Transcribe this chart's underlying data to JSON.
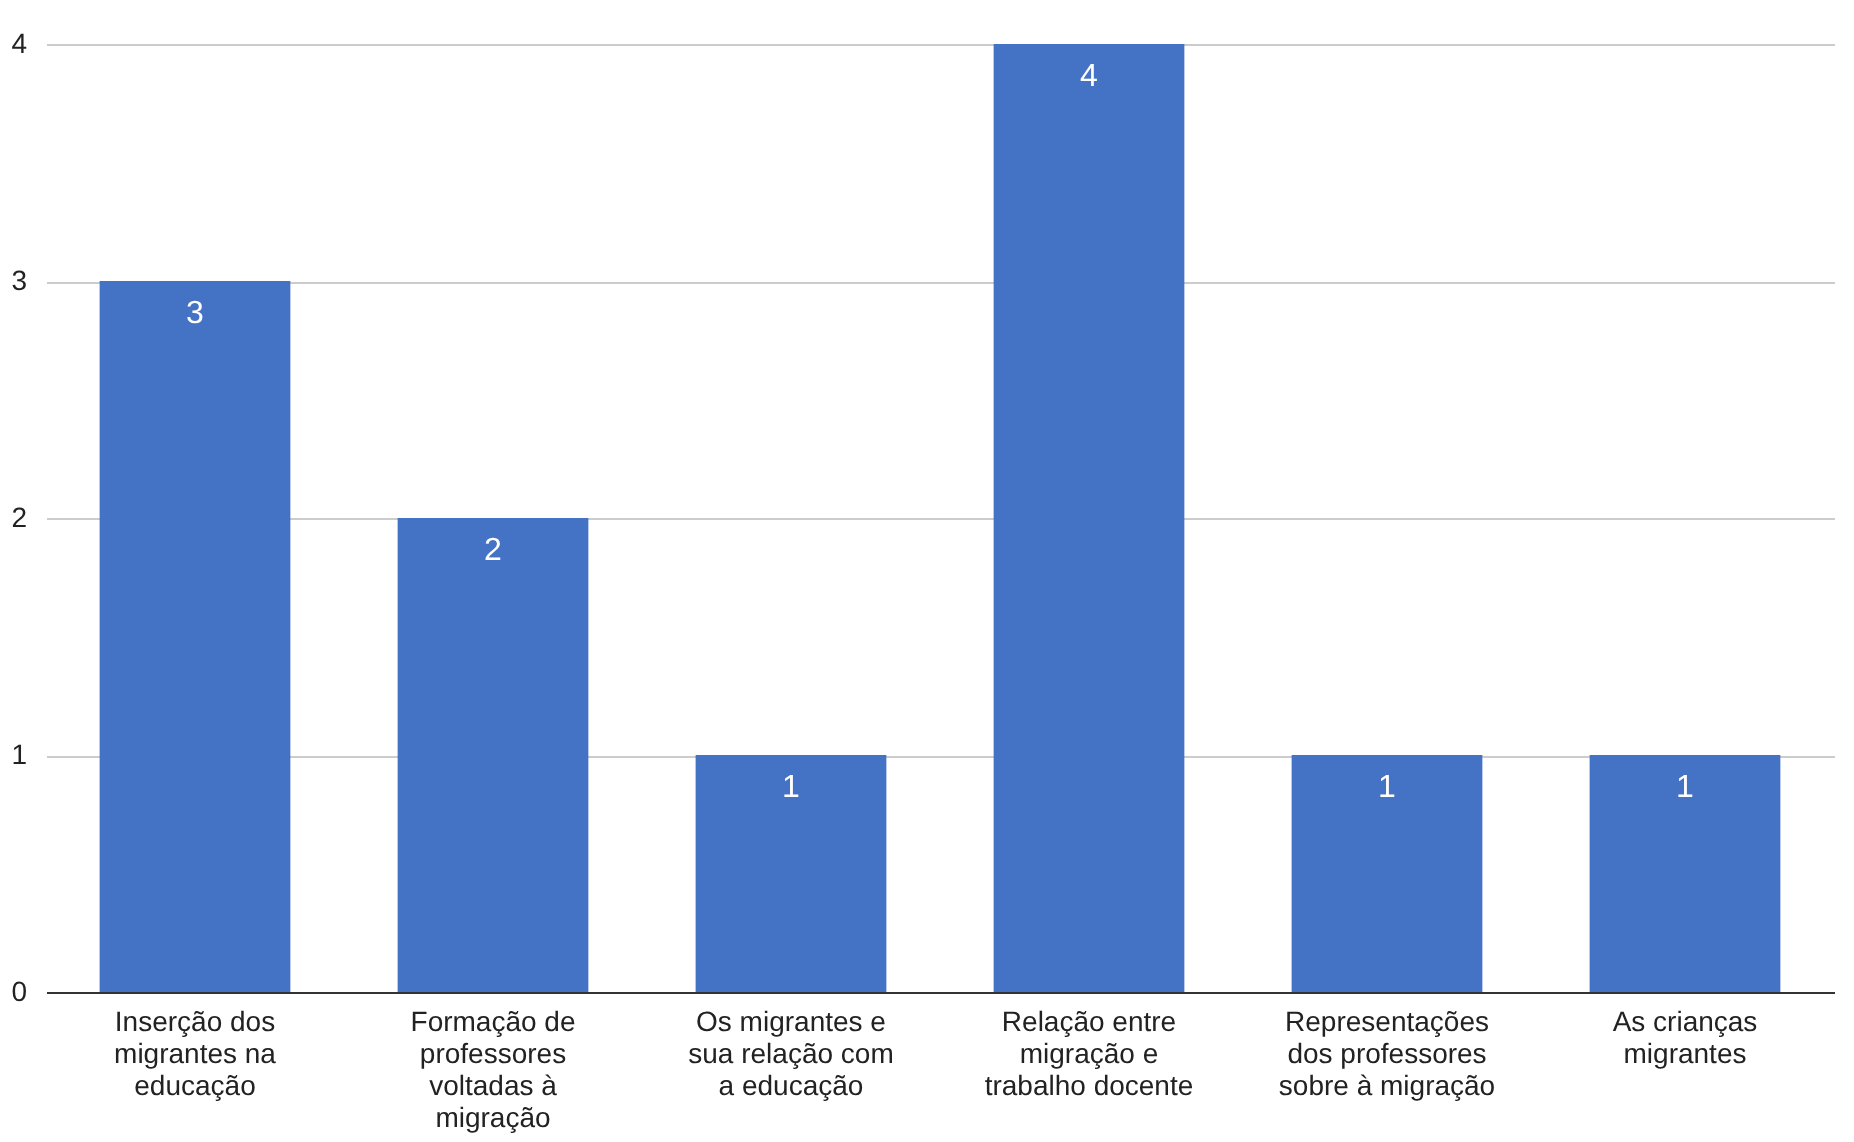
{
  "chart_data": {
    "type": "bar",
    "categories": [
      "Inserção dos migrantes na educação",
      "Formação de professores voltadas à migração",
      "Os migrantes e sua relação com a educação",
      "Relação entre migração e trabalho docente",
      "Representações dos professores sobre à migração",
      "As crianças migrantes"
    ],
    "values": [
      3,
      2,
      1,
      4,
      1,
      1
    ],
    "color": "#4472c4",
    "ylim": [
      0,
      4
    ],
    "yticks": [
      0,
      1,
      2,
      3,
      4
    ],
    "grid": "y",
    "data_labels": true
  }
}
